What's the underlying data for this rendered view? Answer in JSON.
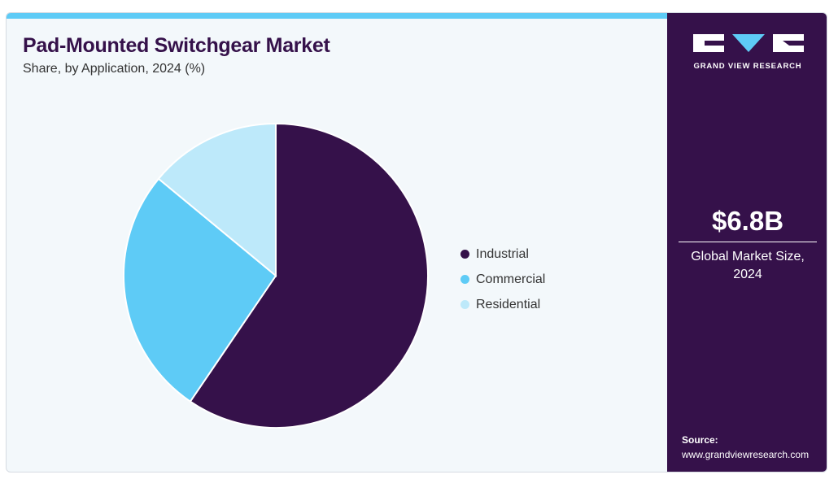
{
  "header": {
    "title": "Pad-Mounted Switchgear Market",
    "subtitle": "Share, by Application, 2024 (%)"
  },
  "colors": {
    "brand_dark": "#35114a",
    "accent": "#5ecbf6",
    "background": "#f3f8fb"
  },
  "chart_data": {
    "type": "pie",
    "title": "Pad-Mounted Switchgear Market",
    "subtitle": "Share, by Application, 2024 (%)",
    "categories": [
      "Industrial",
      "Commercial",
      "Residential"
    ],
    "values": [
      59.5,
      26.5,
      14.0
    ],
    "colors": [
      "#35114a",
      "#5ecbf6",
      "#bde9fa"
    ],
    "start_angle_deg": 0,
    "direction": "clockwise",
    "legend_position": "right"
  },
  "sidebar": {
    "logo_icon": "gvr-logo-icon",
    "logo_text": "GRAND VIEW RESEARCH",
    "market_size_value": "$6.8B",
    "market_size_label": "Global Market Size, 2024",
    "source_label": "Source:",
    "source_url": "www.grandviewresearch.com"
  }
}
